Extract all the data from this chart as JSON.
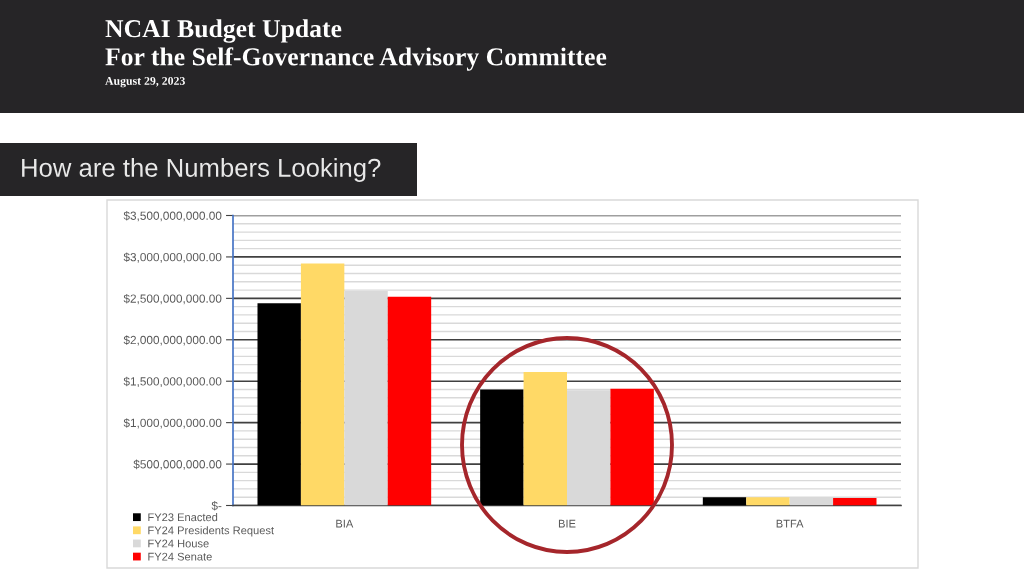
{
  "chart_data": {
    "type": "bar",
    "title": "NCAI Budget Update",
    "subtitle": "For the Self-Governance Advisory Committee",
    "annotations": [
      "August 29, 2023",
      "How are the Numbers Looking?"
    ],
    "categories": [
      "BIA",
      "BIE",
      "BTFA"
    ],
    "series": [
      {
        "name": "FY23 Enacted",
        "color": "#000000",
        "values": [
          2440000000,
          1400000000,
          100000000
        ]
      },
      {
        "name": "FY24 Presidents Request",
        "color": "#ffd966",
        "values": [
          2920000000,
          1610000000,
          100000000
        ]
      },
      {
        "name": "FY24 House",
        "color": "#d9d9d9",
        "values": [
          2590000000,
          1390000000,
          100000000
        ]
      },
      {
        "name": "FY24 Senate",
        "color": "#ff0000",
        "values": [
          2520000000,
          1410000000,
          90000000
        ]
      }
    ],
    "ylim": [
      0,
      3500000000
    ],
    "yticks": [
      {
        "value": 0,
        "label": "$-"
      },
      {
        "value": 500000000,
        "label": "$500,000,000.00"
      },
      {
        "value": 1000000000,
        "label": "$1,000,000,000.00"
      },
      {
        "value": 1500000000,
        "label": "$1,500,000,000.00"
      },
      {
        "value": 2000000000,
        "label": "$2,000,000,000.00"
      },
      {
        "value": 2500000000,
        "label": "$2,500,000,000.00"
      },
      {
        "value": 3000000000,
        "label": "$3,000,000,000.00"
      },
      {
        "value": 3500000000,
        "label": "$3,500,000,000.00"
      }
    ],
    "grid": "y",
    "legend": "bottom left"
  }
}
